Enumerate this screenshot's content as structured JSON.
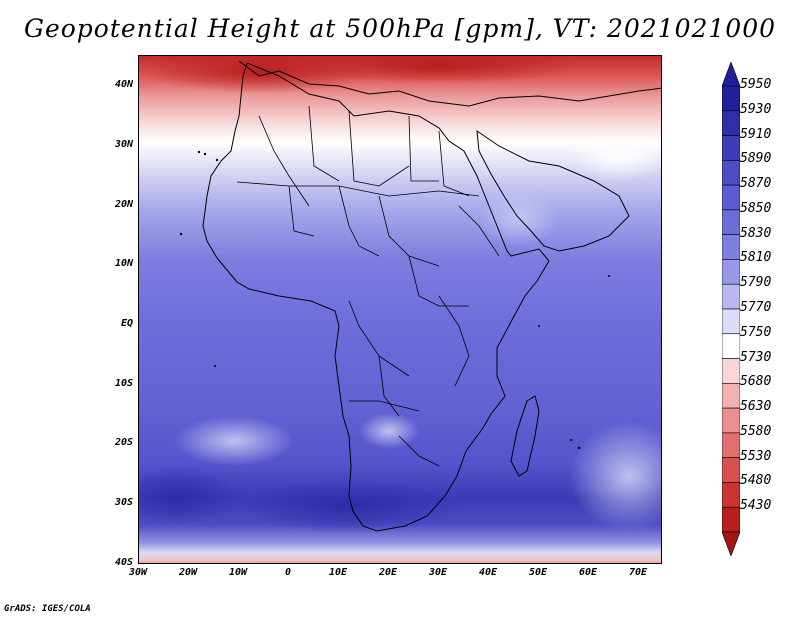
{
  "title": "Geopotential Height at 500hPa [gpm], VT: 2021021000",
  "credit": "GrADS: IGES/COLA",
  "lat_ticks": [
    "40N",
    "30N",
    "20N",
    "10N",
    "EQ",
    "10S",
    "20S",
    "30S",
    "40S"
  ],
  "lon_ticks": [
    "30W",
    "20W",
    "10W",
    "0",
    "10E",
    "20E",
    "30E",
    "40E",
    "50E",
    "60E",
    "70E"
  ],
  "colorbar": {
    "levels": [
      "5950",
      "5930",
      "5910",
      "5890",
      "5870",
      "5850",
      "5830",
      "5810",
      "5790",
      "5770",
      "5750",
      "5730",
      "5680",
      "5630",
      "5580",
      "5530",
      "5480",
      "5430"
    ],
    "colors": [
      "#221f9c",
      "#2e2ea8",
      "#3c3cb8",
      "#4d4dc6",
      "#5c5cd2",
      "#6d6dda",
      "#7f7fe1",
      "#9898e8",
      "#b9b9f0",
      "#dcdcf6",
      "#ffffff",
      "#f8d6d6",
      "#f1b2b2",
      "#ea8e8e",
      "#e26f6f",
      "#d85050",
      "#cc3434",
      "#b71f1f"
    ],
    "top_arrow": "#221f9c",
    "bottom_arrow": "#a51414"
  }
}
